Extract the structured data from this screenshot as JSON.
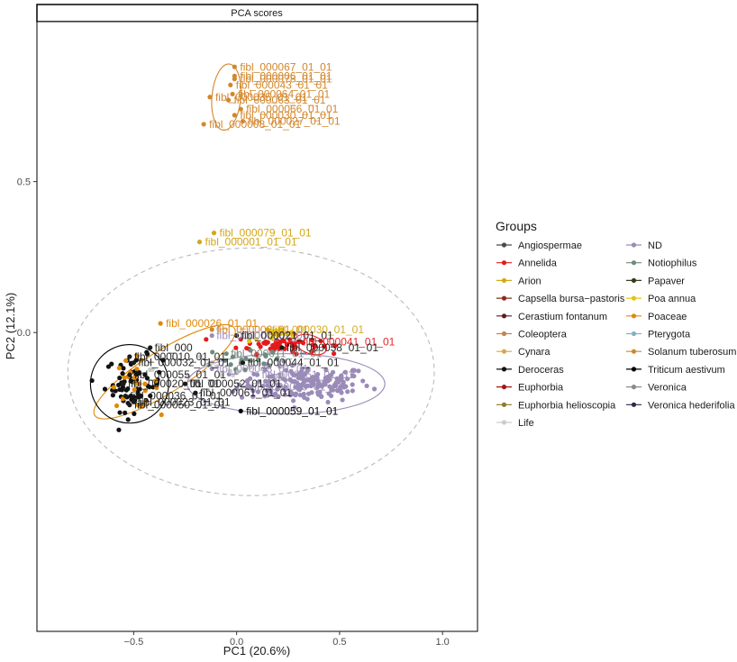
{
  "chart_data": {
    "type": "scatter",
    "title": "PCA scores",
    "xlabel": "PC1 (20.6%)",
    "ylabel": "PC2 (12.1%)",
    "xlim": [
      -0.97,
      1.17
    ],
    "ylim": [
      -0.99,
      1.03
    ],
    "x_ticks": [
      -0.5,
      0.0,
      0.5,
      1.0
    ],
    "x_tick_labels": [
      "−0.5",
      "0.0",
      "0.5",
      "1.0"
    ],
    "y_ticks": [
      0.0,
      0.5
    ],
    "y_tick_labels": [
      "0.0",
      "0.5"
    ],
    "grid": false,
    "legend": {
      "title": "Groups",
      "position": "right",
      "entries": [
        {
          "name": "Angiospermae",
          "color": "#4a4a4a"
        },
        {
          "name": "Annelida",
          "color": "#e31a1c"
        },
        {
          "name": "Arion",
          "color": "#d4a717"
        },
        {
          "name": "Capsella bursa−pastoris",
          "color": "#8b2a1a"
        },
        {
          "name": "Cerastium fontanum",
          "color": "#5e1a1a"
        },
        {
          "name": "Coleoptera",
          "color": "#c08552"
        },
        {
          "name": "Cynara",
          "color": "#d9a74a"
        },
        {
          "name": "Deroceras",
          "color": "#111111"
        },
        {
          "name": "Euphorbia",
          "color": "#a31515"
        },
        {
          "name": "Euphorbia helioscopia",
          "color": "#8c7a2a"
        },
        {
          "name": "Life",
          "color": "#cccccc"
        },
        {
          "name": "ND",
          "color": "#9a8bb8"
        },
        {
          "name": "Notiophilus",
          "color": "#6e8a7a"
        },
        {
          "name": "Papaver",
          "color": "#3a3a1a"
        },
        {
          "name": "Poa annua",
          "color": "#e5c317"
        },
        {
          "name": "Poaceae",
          "color": "#e08a0b"
        },
        {
          "name": "Pterygota",
          "color": "#7fb3c8"
        },
        {
          "name": "Solanum tuberosum",
          "color": "#d2872c"
        },
        {
          "name": "Triticum aestivum",
          "color": "#000000"
        },
        {
          "name": "Veronica",
          "color": "#8a8a8a"
        },
        {
          "name": "Veronica hederifolia",
          "color": "#2a2a4a"
        }
      ]
    },
    "labeled_points": [
      {
        "label": "fibl_000067_01_01",
        "x": -0.01,
        "y": 0.88,
        "color": "#d2872c"
      },
      {
        "label": "fibl_000006_01_01",
        "x": -0.01,
        "y": 0.85,
        "color": "#d2872c"
      },
      {
        "label": "fibl_000078_01_01",
        "x": -0.01,
        "y": 0.84,
        "color": "#d2872c"
      },
      {
        "label": "fibl_000043_01_01",
        "x": -0.03,
        "y": 0.82,
        "color": "#d2872c"
      },
      {
        "label": "fibl_000064_01_01",
        "x": -0.02,
        "y": 0.79,
        "color": "#d2872c"
      },
      {
        "label": "fibl_000035_01_01",
        "x": -0.13,
        "y": 0.78,
        "color": "#d2872c"
      },
      {
        "label": "fibl_000063_01_01",
        "x": -0.04,
        "y": 0.77,
        "color": "#d2872c"
      },
      {
        "label": "fibl_000066_01_01",
        "x": 0.02,
        "y": 0.74,
        "color": "#d2872c"
      },
      {
        "label": "fibl_000030_01_01",
        "x": -0.01,
        "y": 0.72,
        "color": "#d2872c"
      },
      {
        "label": "fibl_000027_01_01",
        "x": 0.03,
        "y": 0.7,
        "color": "#d2872c"
      },
      {
        "label": "fibl_000008_01_01",
        "x": -0.16,
        "y": 0.69,
        "color": "#d2872c"
      },
      {
        "label": "fibl_000079_01_01",
        "x": -0.11,
        "y": 0.33,
        "color": "#d4a717"
      },
      {
        "label": "fibl_000001_01_01",
        "x": -0.18,
        "y": 0.3,
        "color": "#d4a717"
      },
      {
        "label": "fibl_000026_01_01",
        "x": -0.37,
        "y": 0.03,
        "color": "#e08a0b"
      },
      {
        "label": "fibl_000059_01_01",
        "x": 0.02,
        "y": -0.26,
        "color": "#000000"
      }
    ],
    "clusters": [
      {
        "group": "ND",
        "cx": 0.33,
        "cy": -0.17,
        "sx": 0.16,
        "sy": 0.03,
        "n": 170,
        "color": "#9a8bb8"
      },
      {
        "group": "Annelida",
        "cx": 0.2,
        "cy": -0.04,
        "sx": 0.1,
        "sy": 0.015,
        "n": 55,
        "color": "#e31a1c"
      },
      {
        "group": "Deroceras",
        "cx": -0.5,
        "cy": -0.17,
        "sx": 0.07,
        "sy": 0.045,
        "n": 70,
        "color": "#111111"
      },
      {
        "group": "Poaceae",
        "cx": -0.5,
        "cy": -0.17,
        "sx": 0.06,
        "sy": 0.04,
        "n": 25,
        "color": "#e08a0b"
      },
      {
        "group": "Poa annua",
        "cx": 0.2,
        "cy": -0.01,
        "sx": 0.07,
        "sy": 0.01,
        "n": 15,
        "color": "#e5c317"
      },
      {
        "group": "Notiophilus",
        "cx": 0.05,
        "cy": -0.09,
        "sx": 0.12,
        "sy": 0.03,
        "n": 22,
        "color": "#6e8a7a"
      },
      {
        "group": "Life",
        "cx": 0.0,
        "cy": -0.12,
        "sx": 0.2,
        "sy": 0.04,
        "n": 20,
        "color": "#cccccc"
      }
    ],
    "ellipses": [
      {
        "group": "Solanum tuberosum",
        "cx": -0.05,
        "cy": 0.78,
        "rx": 0.07,
        "ry": 0.11,
        "angle": -5,
        "color": "#d2872c",
        "dashed": false
      },
      {
        "group": "Poaceae",
        "cx": -0.35,
        "cy": -0.13,
        "rx": 0.4,
        "ry": 0.07,
        "angle": 32,
        "color": "#e08a0b",
        "dashed": false
      },
      {
        "group": "Triticum aestivum",
        "cx": -0.52,
        "cy": -0.17,
        "rx": 0.19,
        "ry": 0.13,
        "angle": 0,
        "color": "#000000",
        "dashed": false
      },
      {
        "group": "ND",
        "cx": 0.24,
        "cy": -0.17,
        "rx": 0.48,
        "ry": 0.1,
        "angle": 0,
        "color": "#9a8bb8",
        "dashed": false
      },
      {
        "group": "Annelida",
        "cx": 0.36,
        "cy": -0.04,
        "rx": 0.08,
        "ry": 0.03,
        "angle": -20,
        "color": "#e31a1c",
        "dashed": false
      },
      {
        "group": "Life",
        "cx": 0.07,
        "cy": -0.13,
        "rx": 0.89,
        "ry": 0.41,
        "angle": 0,
        "color": "#bbbbbb",
        "dashed": true
      }
    ],
    "overlapping_labels": [
      {
        "label": "fibl_000",
        "x": -0.42,
        "y": -0.05,
        "color": "#1a1a1a"
      },
      {
        "label": "fibl_000010_01_01",
        "x": -0.52,
        "y": -0.08,
        "color": "#1a1a1a"
      },
      {
        "label": "fibl_000032_01_01",
        "x": -0.5,
        "y": -0.1,
        "color": "#1a1a1a"
      },
      {
        "label": "fibl_000044_01_01",
        "x": 0.03,
        "y": -0.1,
        "color": "#1a1a1a"
      },
      {
        "label": "fibl_000055_01_01",
        "x": -0.52,
        "y": -0.14,
        "color": "#1a1a1a"
      },
      {
        "label": "fibl_000020_01_01",
        "x": -0.55,
        "y": -0.17,
        "color": "#1a1a1a"
      },
      {
        "label": "fibl_000036_01_01",
        "x": -0.54,
        "y": -0.21,
        "color": "#1a1a1a"
      },
      {
        "label": "fibl_000023_01_01",
        "x": -0.5,
        "y": -0.23,
        "color": "#1a1a1a"
      },
      {
        "label": "fibl_000050_01_01",
        "x": -0.52,
        "y": -0.24,
        "color": "#1a1a1a"
      },
      {
        "label": "fibl_000002_01_01",
        "x": -0.12,
        "y": 0.01,
        "color": "#d2872c"
      },
      {
        "label": "fibl_000030_01_01",
        "x": 0.15,
        "y": 0.01,
        "color": "#d4a717"
      },
      {
        "label": "fibl_000007_01_01",
        "x": -0.12,
        "y": -0.01,
        "color": "#9a8bb8"
      },
      {
        "label": "fibl_000021_01_01",
        "x": 0.0,
        "y": -0.01,
        "color": "#1a1a1a"
      },
      {
        "label": "fibl_000041_01_01",
        "x": 0.3,
        "y": -0.03,
        "color": "#e31a1c"
      },
      {
        "label": "fibl_000058_01_01",
        "x": 0.22,
        "y": -0.05,
        "color": "#1a1a1a"
      },
      {
        "label": "fibl_000011_01_01",
        "x": -0.05,
        "y": -0.07,
        "color": "#6e8a7a"
      },
      {
        "label": "fibl_000048_01_01",
        "x": -0.12,
        "y": -0.12,
        "color": "#9a8bb8"
      },
      {
        "label": "fibl_000051_01_01",
        "x": 0.1,
        "y": -0.14,
        "color": "#9a8bb8"
      },
      {
        "label": "fibl_000046_01_01",
        "x": 0.05,
        "y": -0.18,
        "color": "#9a8bb8"
      },
      {
        "label": "fibl_000052_01_01",
        "x": -0.25,
        "y": -0.17,
        "color": "#1a1a1a"
      },
      {
        "label": "fibl_000061_01_01",
        "x": -0.2,
        "y": -0.2,
        "color": "#1a1a1a"
      }
    ]
  }
}
